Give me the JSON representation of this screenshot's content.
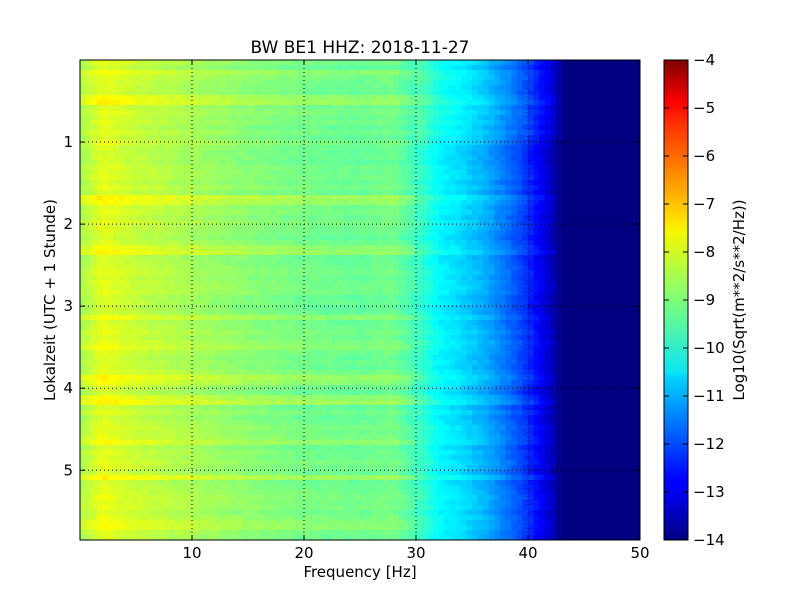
{
  "chart_data": {
    "type": "heatmap",
    "title": "BW BE1 HHZ: 2018-11-27",
    "xlabel": "Frequency [Hz]",
    "ylabel": "Lokalzeit (UTC + 1 Stunde)",
    "xlim": [
      0,
      50
    ],
    "ylim": [
      5.85,
      0
    ],
    "xticks": [
      10,
      20,
      30,
      40,
      50
    ],
    "yticks": [
      1,
      2,
      3,
      4,
      5
    ],
    "grid": true,
    "colormap": "jet",
    "colorbar": {
      "label": "Log10(Sqrt(m**2/s**2/Hz))",
      "range": [
        -14,
        -4
      ],
      "ticks": [
        -4,
        -5,
        -6,
        -7,
        -8,
        -9,
        -10,
        -11,
        -12,
        -13,
        -14
      ]
    },
    "spectrum_profile": {
      "frequency_hz": [
        0,
        2,
        5,
        10,
        15,
        20,
        25,
        28,
        30,
        31,
        32,
        34,
        36,
        38,
        40,
        41,
        42,
        43,
        44,
        50
      ],
      "log10_amplitude": [
        -8.6,
        -8.0,
        -8.3,
        -8.6,
        -8.9,
        -9.1,
        -9.2,
        -9.1,
        -9.6,
        -9.9,
        -10.3,
        -10.6,
        -11.0,
        -11.6,
        -12.3,
        -12.8,
        -13.3,
        -14.0,
        -14.0,
        -14.0
      ]
    },
    "bright_bands_hours": [
      0.15,
      0.5,
      1.7,
      2.3,
      3.15,
      3.5,
      3.9,
      4.15,
      4.65,
      5.1,
      5.65
    ]
  },
  "colors": {
    "axes": "#000000",
    "grid": "#000000",
    "background": "#ffffff"
  }
}
